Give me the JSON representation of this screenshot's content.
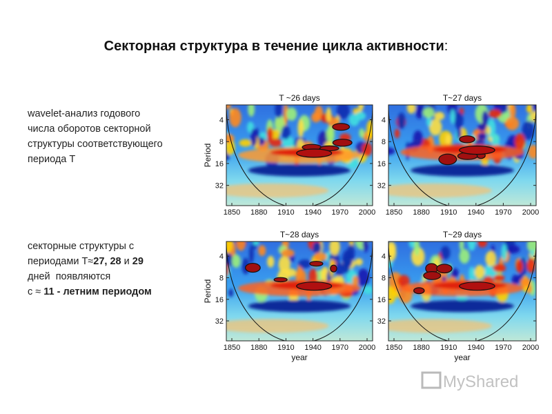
{
  "title": "Секторная структура в течение цикла активности",
  "title_punct": ":",
  "paragraph_1": [
    "wavelet-анализ годового",
    "числа оборотов секторной",
    "структуры соответствующего",
    "периода Т"
  ],
  "paragraph_2": [
    [
      {
        "text": "секторные структуры с",
        "bold": false
      }
    ],
    [
      {
        "text": "периодами Т≈",
        "bold": false
      },
      {
        "text": "27, 28",
        "bold": true
      },
      {
        "text": " и ",
        "bold": false
      },
      {
        "text": "29",
        "bold": true
      }
    ],
    [
      {
        "text": "дней  появляются",
        "bold": false
      }
    ],
    [
      {
        "text": "с ≈ ",
        "bold": false
      },
      {
        "text": "11 - летним периодом",
        "bold": true
      }
    ]
  ],
  "axes": {
    "ylabel": "Period",
    "xlabel": "year",
    "yticks": [
      4,
      8,
      16,
      32
    ],
    "xticks": [
      1850,
      1880,
      1910,
      1940,
      1970,
      2000
    ]
  },
  "panels": [
    {
      "title": "T ~26 days"
    },
    {
      "title": "T~27 days"
    },
    {
      "title": "T~28 days"
    },
    {
      "title": "T~29 days"
    }
  ],
  "watermark": "MyShared"
}
